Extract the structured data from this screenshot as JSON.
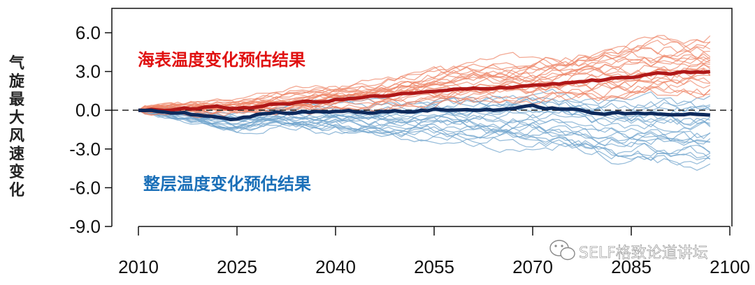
{
  "chart_data": {
    "type": "line",
    "title": "",
    "ylabel": "气旋最大风速变化",
    "xlabel": "",
    "xlim": [
      2010,
      2100
    ],
    "ylim": [
      -9.0,
      7.5
    ],
    "x_ticks": [
      2010,
      2025,
      2040,
      2055,
      2070,
      2085,
      2100
    ],
    "x_tick_labels": [
      "2010",
      "2025",
      "2040",
      "2055",
      "2070",
      "2085",
      "2100"
    ],
    "y_ticks": [
      6.0,
      3.0,
      0.0,
      -3.0,
      -6.0,
      -9.0
    ],
    "y_tick_labels": [
      "6.0",
      "3.0",
      "0.0",
      "-3.0",
      "-6.0",
      "-9.0"
    ],
    "reference_line": 0.0,
    "annotations": {
      "sst_label": "海表温度变化预估结果",
      "layer_label": "整层温度变化预估结果"
    },
    "series": [
      {
        "name": "海表温度变化预估结果 (ensemble mean)",
        "color": "#b01818",
        "x": [
          2010,
          2015,
          2020,
          2025,
          2030,
          2035,
          2040,
          2045,
          2050,
          2055,
          2060,
          2065,
          2070,
          2075,
          2080,
          2085,
          2090,
          2095,
          2100
        ],
        "values": [
          0.0,
          0.1,
          0.2,
          0.15,
          0.4,
          0.6,
          0.8,
          1.0,
          1.2,
          1.4,
          1.6,
          1.8,
          1.95,
          2.1,
          2.3,
          2.55,
          2.8,
          2.95,
          3.05
        ]
      },
      {
        "name": "整层温度变化预估结果 (ensemble mean)",
        "color": "#0d2a5c",
        "x": [
          2010,
          2015,
          2020,
          2025,
          2030,
          2035,
          2040,
          2045,
          2050,
          2055,
          2060,
          2065,
          2070,
          2075,
          2080,
          2085,
          2090,
          2095,
          2100
        ],
        "values": [
          0.0,
          -0.2,
          -0.4,
          -0.7,
          -0.2,
          -0.1,
          0.0,
          -0.15,
          -0.1,
          0.05,
          0.0,
          0.1,
          0.25,
          0.1,
          -0.25,
          -0.3,
          -0.2,
          -0.3,
          -0.3
        ]
      }
    ],
    "ensemble_members": {
      "sst": {
        "color": "#ee8466",
        "count": 24,
        "final_range": [
          1.5,
          5.5
        ]
      },
      "layer": {
        "color": "#6ea2cc",
        "count": 22,
        "final_range": [
          -4.2,
          0.8
        ]
      }
    }
  },
  "watermark": {
    "text": "SELF格致论道讲坛"
  }
}
